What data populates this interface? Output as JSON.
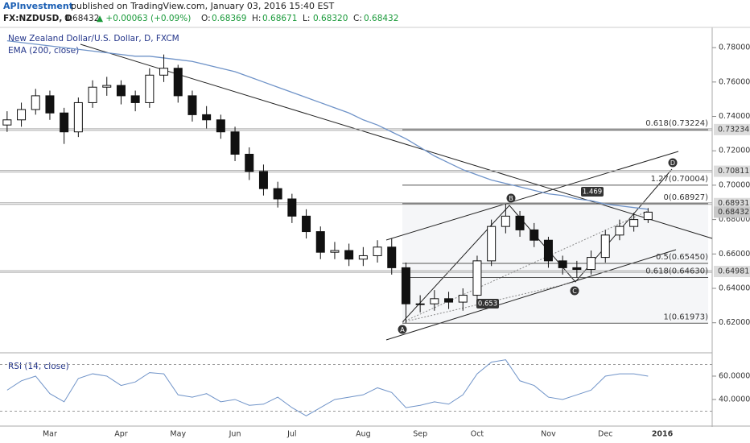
{
  "header": {
    "author": "APInvestment",
    "published": "published on TradingView.com, January 03, 2016 15:40 EST",
    "symbol": "FX:NZDUSD, D",
    "last": "0.68432",
    "change": "▲ +0.00063 (+0.09%)",
    "ohlc": [
      {
        "key": "O:",
        "value": "0.68369"
      },
      {
        "key": "H:",
        "value": "0.68671"
      },
      {
        "key": "L:",
        "value": "0.68320"
      },
      {
        "key": "C:",
        "value": "0.68432"
      }
    ]
  },
  "chart_data": [
    {
      "type": "candlestick",
      "title": "New Zealand Dollar/U.S. Dollar, D, FXCM",
      "categories": [
        null,
        null,
        null,
        "Mar",
        null,
        null,
        null,
        null,
        "Apr",
        null,
        null,
        null,
        "May",
        null,
        null,
        null,
        "Jun",
        null,
        null,
        null,
        "Jul",
        null,
        null,
        null,
        null,
        "Aug",
        null,
        null,
        null,
        "Sep",
        null,
        null,
        null,
        "Oct",
        null,
        null,
        null,
        null,
        "Nov",
        null,
        null,
        null,
        "Dec",
        null,
        null,
        null,
        "2016"
      ],
      "open": [
        0.735,
        0.738,
        0.744,
        0.752,
        0.742,
        0.731,
        0.748,
        0.757,
        0.758,
        0.752,
        0.748,
        0.764,
        0.768,
        0.752,
        0.741,
        0.738,
        0.731,
        0.718,
        0.708,
        0.698,
        0.692,
        0.682,
        0.673,
        0.661,
        0.662,
        0.657,
        0.659,
        0.664,
        0.652,
        0.631,
        0.631,
        0.634,
        0.632,
        0.636,
        0.656,
        0.676,
        0.682,
        0.674,
        0.668,
        0.656,
        0.652,
        0.651,
        0.658,
        0.671,
        0.676,
        0.68,
        null
      ],
      "high": [
        0.743,
        0.748,
        0.756,
        0.755,
        0.745,
        0.751,
        0.761,
        0.763,
        0.761,
        0.755,
        0.768,
        0.776,
        0.77,
        0.755,
        0.746,
        0.741,
        0.734,
        0.722,
        0.712,
        0.702,
        0.695,
        0.686,
        0.676,
        0.667,
        0.666,
        0.664,
        0.668,
        0.669,
        0.655,
        0.636,
        0.639,
        0.638,
        0.64,
        0.659,
        0.68,
        0.6892,
        0.685,
        0.678,
        0.67,
        0.659,
        0.656,
        0.662,
        0.674,
        0.68,
        0.684,
        0.6867,
        null
      ],
      "low": [
        0.731,
        0.734,
        0.741,
        0.738,
        0.724,
        0.728,
        0.745,
        0.752,
        0.747,
        0.743,
        0.745,
        0.76,
        0.748,
        0.737,
        0.733,
        0.727,
        0.714,
        0.703,
        0.694,
        0.687,
        0.678,
        0.669,
        0.657,
        0.657,
        0.653,
        0.653,
        0.655,
        0.648,
        0.6197,
        0.626,
        0.627,
        0.628,
        0.627,
        0.633,
        0.653,
        0.672,
        0.67,
        0.664,
        0.652,
        0.648,
        0.6463,
        0.648,
        0.655,
        0.668,
        0.673,
        0.678,
        null
      ],
      "close": [
        0.738,
        0.744,
        0.752,
        0.742,
        0.731,
        0.748,
        0.757,
        0.758,
        0.752,
        0.748,
        0.764,
        0.768,
        0.752,
        0.741,
        0.738,
        0.731,
        0.718,
        0.708,
        0.698,
        0.692,
        0.682,
        0.673,
        0.661,
        0.662,
        0.657,
        0.659,
        0.664,
        0.652,
        0.631,
        0.631,
        0.634,
        0.632,
        0.636,
        0.656,
        0.676,
        0.682,
        0.674,
        0.668,
        0.656,
        0.652,
        0.651,
        0.658,
        0.671,
        0.676,
        0.68,
        0.68432,
        null
      ],
      "series": [
        {
          "name": "EMA (200, close)",
          "color": "#6f93c8",
          "values": [
            0.784,
            0.783,
            0.782,
            0.781,
            0.78,
            0.779,
            0.778,
            0.777,
            0.776,
            0.775,
            0.775,
            0.774,
            0.773,
            0.772,
            0.77,
            0.768,
            0.766,
            0.763,
            0.76,
            0.757,
            0.754,
            0.751,
            0.748,
            0.745,
            0.742,
            0.738,
            0.735,
            0.731,
            0.727,
            0.722,
            0.717,
            0.713,
            0.709,
            0.706,
            0.703,
            0.701,
            0.699,
            0.697,
            0.695,
            0.694,
            0.692,
            0.691,
            0.689,
            0.688,
            0.687,
            0.686,
            null
          ]
        }
      ],
      "ylim": [
        0.603,
        0.7913
      ],
      "yticks": [
        {
          "value": 0.62,
          "label": "0.62000"
        },
        {
          "value": 0.64,
          "label": "0.64000"
        },
        {
          "value": 0.66,
          "label": "0.66000"
        },
        {
          "value": 0.68,
          "label": "0.68000"
        },
        {
          "value": 0.7,
          "label": "0.70000"
        },
        {
          "value": 0.72,
          "label": "0.72000"
        },
        {
          "value": 0.74,
          "label": "0.74000"
        },
        {
          "value": 0.76,
          "label": "0.76000"
        },
        {
          "value": 0.78,
          "label": "0.78000"
        }
      ],
      "price_levels": [
        {
          "value": 0.73234,
          "label": "0.73234"
        },
        {
          "value": 0.70811,
          "label": "0.70811"
        },
        {
          "value": 0.68931,
          "label": "0.68931"
        },
        {
          "value": 0.64981,
          "label": "0.64981"
        }
      ],
      "last_price": {
        "value": 0.68432,
        "label": "0.68432"
      },
      "fib_levels": [
        {
          "value": 0.73224,
          "label": "0.618(0.73224)"
        },
        {
          "value": 0.70004,
          "label": "1.27(0.70004)"
        },
        {
          "value": 0.68927,
          "label": "0(0.68927)"
        },
        {
          "value": 0.6545,
          "label": "0.5(0.65450)"
        },
        {
          "value": 0.6463,
          "label": "0.618(0.64630)"
        },
        {
          "value": 0.61973,
          "label": "1(0.61973)"
        }
      ],
      "pattern_labels": [
        "A",
        "B",
        "C",
        "D"
      ],
      "ratio_labels": [
        "1.469",
        "0.653"
      ]
    },
    {
      "type": "line",
      "title": "RSI (14, close)",
      "color": "#6f93c8",
      "values": [
        48,
        56,
        60,
        45,
        38,
        58,
        62,
        60,
        52,
        55,
        63,
        62,
        44,
        42,
        45,
        38,
        40,
        35,
        36,
        42,
        33,
        26,
        33,
        40,
        42,
        44,
        50,
        46,
        33,
        35,
        38,
        36,
        44,
        62,
        72,
        74,
        56,
        52,
        42,
        40,
        44,
        48,
        60,
        62,
        62,
        60,
        null
      ],
      "ylim": [
        18.6,
        78.6
      ],
      "yticks": [
        {
          "value": 60,
          "label": "60.0000"
        },
        {
          "value": 40,
          "label": "40.0000"
        }
      ],
      "bands": [
        70,
        30
      ]
    }
  ]
}
